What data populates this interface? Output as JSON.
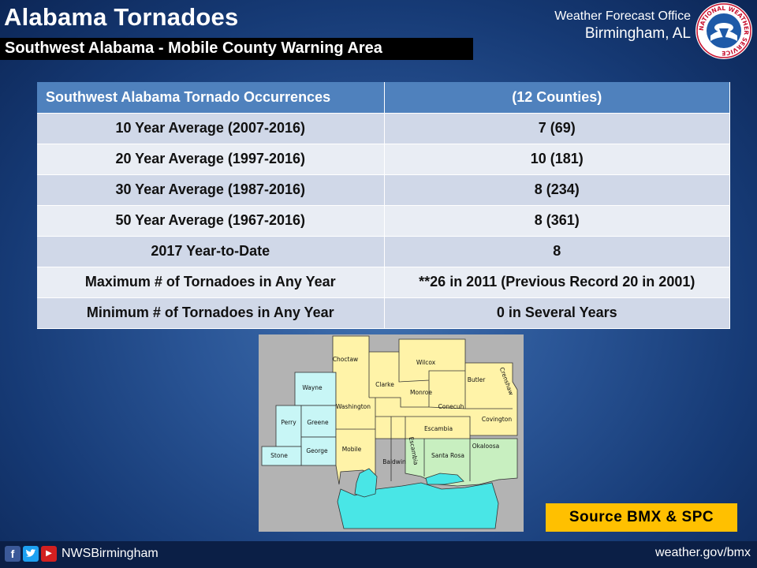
{
  "header": {
    "title": "Alabama Tornadoes",
    "subtitle": "Southwest Alabama - Mobile County Warning Area",
    "office_line1": "Weather Forecast Office",
    "office_line2": "Birmingham, AL",
    "logo_text": "NATIONAL WEATHER SERVICE"
  },
  "table": {
    "header_left": "Southwest Alabama Tornado Occurrences",
    "header_right": "(12 Counties)",
    "rows": [
      {
        "label": "10 Year Average (2007-2016)",
        "value": "7  (69)"
      },
      {
        "label": "20 Year Average (1997-2016)",
        "value": "10  (181)"
      },
      {
        "label": "30 Year Average (1987-2016)",
        "value": "8  (234)"
      },
      {
        "label": "50 Year Average (1967-2016)",
        "value": "8  (361)"
      },
      {
        "label": "2017 Year-to-Date",
        "value": "8"
      },
      {
        "label": "Maximum # of Tornadoes in Any Year",
        "value": "**26 in 2011   (Previous Record 20 in 2001)"
      },
      {
        "label": "Minimum # of Tornadoes in Any Year",
        "value": "0 in Several Years"
      }
    ]
  },
  "map": {
    "counties": {
      "choctaw": "Choctaw",
      "wilcox": "Wilcox",
      "clarke": "Clarke",
      "butler": "Butler",
      "crenshaw": "Crenshaw",
      "monroe": "Monroe",
      "wayne": "Wayne",
      "washington": "Washington",
      "conecuh": "Conecuh",
      "perry": "Perry",
      "greene": "Greene",
      "covington": "Covington",
      "escambia_al": "Escambia",
      "stone": "Stone",
      "george": "George",
      "mobile": "Mobile",
      "escambia_fl": "Escambia",
      "santa_rosa": "Santa Rosa",
      "okaloosa": "Okaloosa",
      "baldwin": "Baldwin"
    },
    "colors": {
      "alabama": "#fff3a8",
      "mississippi": "#c8f6f6",
      "florida": "#c8efc0",
      "water": "#49e6e6",
      "background": "#b3b3b3"
    }
  },
  "source_label": "Source BMX & SPC",
  "footer": {
    "social_icons": [
      "facebook-icon",
      "twitter-icon",
      "youtube-icon"
    ],
    "handle": "NWSBirmingham",
    "website": "weather.gov/bmx"
  }
}
